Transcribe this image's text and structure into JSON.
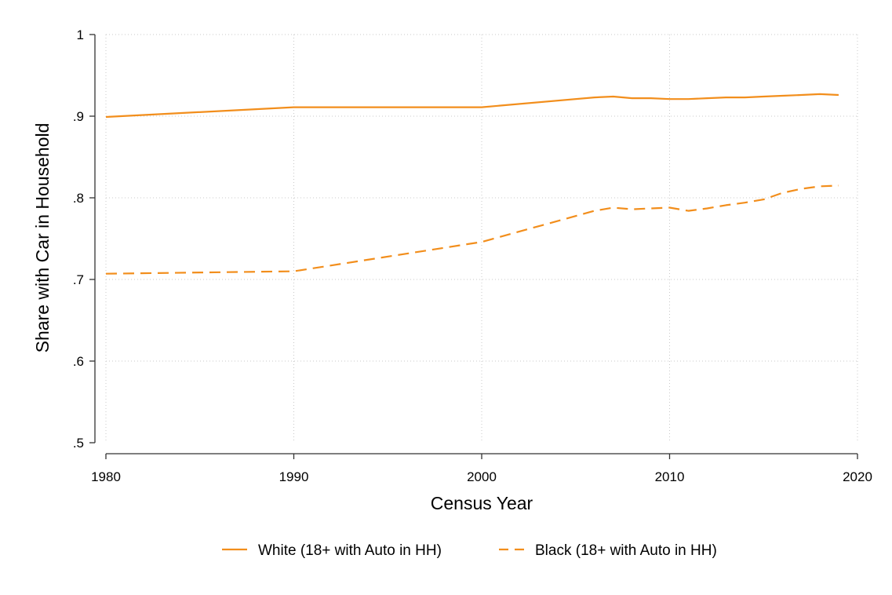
{
  "chart_data": {
    "type": "line",
    "title": "",
    "xlabel": "Census Year",
    "ylabel": "Share with Car in Household",
    "xlim": [
      1980,
      2020
    ],
    "ylim": [
      0.5,
      1.0
    ],
    "x_ticks": [
      1980,
      1990,
      2000,
      2010,
      2020
    ],
    "x_tick_labels": [
      "1980",
      "1990",
      "2000",
      "2010",
      "2020"
    ],
    "y_ticks": [
      0.5,
      0.6,
      0.7,
      0.8,
      0.9,
      1.0
    ],
    "y_tick_labels": [
      ".5",
      ".6",
      ".7",
      ".8",
      ".9",
      "1"
    ],
    "grid": true,
    "legend_position": "bottom",
    "line_color": "#f28e1c",
    "series": [
      {
        "name": "White (18+ with Auto in HH)",
        "style": "solid",
        "color": "#f28e1c",
        "x": [
          1980,
          1990,
          2000,
          2006,
          2007,
          2008,
          2009,
          2010,
          2011,
          2012,
          2013,
          2014,
          2015,
          2016,
          2017,
          2018,
          2019
        ],
        "y": [
          0.899,
          0.911,
          0.911,
          0.923,
          0.924,
          0.922,
          0.922,
          0.921,
          0.921,
          0.922,
          0.923,
          0.923,
          0.924,
          0.925,
          0.926,
          0.927,
          0.926
        ]
      },
      {
        "name": "Black (18+ with Auto in HH)",
        "style": "dashed",
        "color": "#f28e1c",
        "x": [
          1980,
          1990,
          2000,
          2006,
          2007,
          2008,
          2009,
          2010,
          2011,
          2012,
          2013,
          2014,
          2015,
          2016,
          2017,
          2018,
          2019
        ],
        "y": [
          0.707,
          0.71,
          0.746,
          0.784,
          0.788,
          0.786,
          0.787,
          0.788,
          0.784,
          0.787,
          0.791,
          0.794,
          0.798,
          0.806,
          0.811,
          0.814,
          0.815
        ]
      }
    ]
  }
}
